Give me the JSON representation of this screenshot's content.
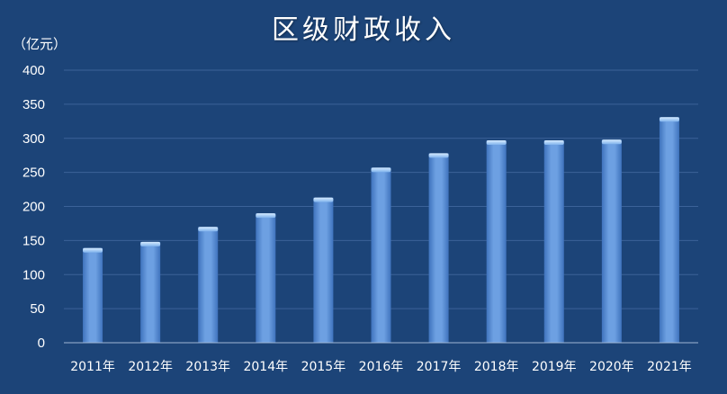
{
  "chart_data": {
    "type": "bar",
    "title": "区级财政收入",
    "ylabel": "（亿元）",
    "xlabel": "",
    "ylim": [
      0,
      400
    ],
    "yticks": [
      0,
      50,
      100,
      150,
      200,
      250,
      300,
      350,
      400
    ],
    "grid": true,
    "categories": [
      "2011年",
      "2012年",
      "2013年",
      "2014年",
      "2015年",
      "2016年",
      "2017年",
      "2018年",
      "2019年",
      "2020年",
      "2021年"
    ],
    "values": [
      139,
      148,
      170,
      190,
      213,
      257,
      278,
      297,
      297,
      298,
      331
    ],
    "colors": {
      "background": "#1c4478",
      "bar": "#5b8fd6",
      "bar_highlight": "#a9cdf5",
      "grid": "#3b6298",
      "axis": "#9fb6d4"
    }
  }
}
